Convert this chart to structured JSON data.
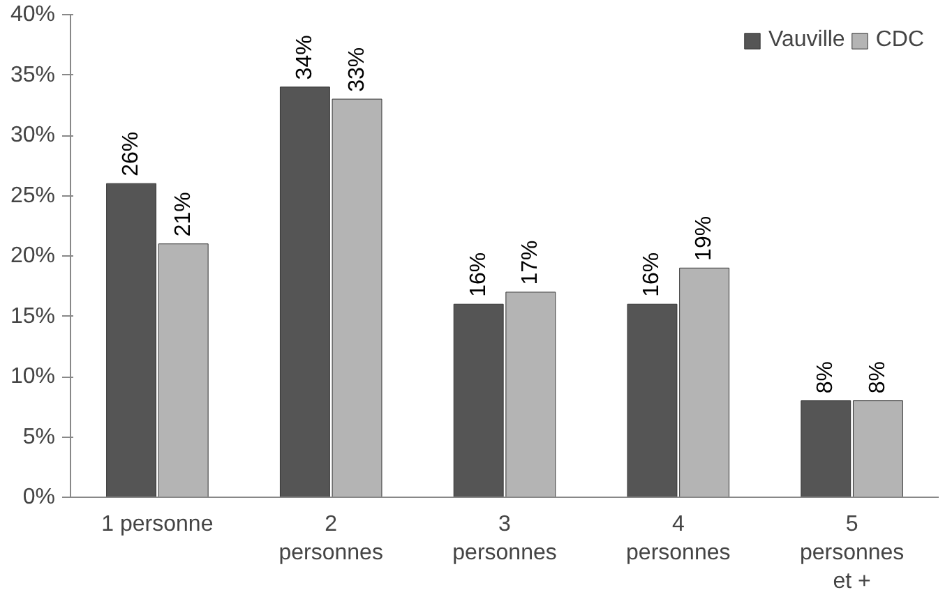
{
  "chart_data": {
    "type": "bar",
    "categories": [
      "1 personne",
      "2\npersonnes",
      "3\npersonnes",
      "4\npersonnes",
      "5\npersonnes\net +"
    ],
    "series": [
      {
        "name": "Vauville",
        "color": "#555555",
        "values": [
          26,
          34,
          16,
          16,
          8
        ],
        "value_labels": [
          "26%",
          "34%",
          "16%",
          "16%",
          "8%"
        ]
      },
      {
        "name": "CDC",
        "color": "#b4b4b4",
        "values": [
          21,
          33,
          17,
          19,
          8
        ],
        "value_labels": [
          "21%",
          "33%",
          "17%",
          "19%",
          "8%"
        ]
      }
    ],
    "ylim": [
      0,
      40
    ],
    "yticks": [
      {
        "value": 0,
        "label": "0%"
      },
      {
        "value": 5,
        "label": "5%"
      },
      {
        "value": 10,
        "label": "10%"
      },
      {
        "value": 15,
        "label": "15%"
      },
      {
        "value": 20,
        "label": "20%"
      },
      {
        "value": 25,
        "label": "25%"
      },
      {
        "value": 30,
        "label": "30%"
      },
      {
        "value": 35,
        "label": "35%"
      },
      {
        "value": 40,
        "label": "40%"
      }
    ],
    "legend": "top right",
    "grid": false
  }
}
